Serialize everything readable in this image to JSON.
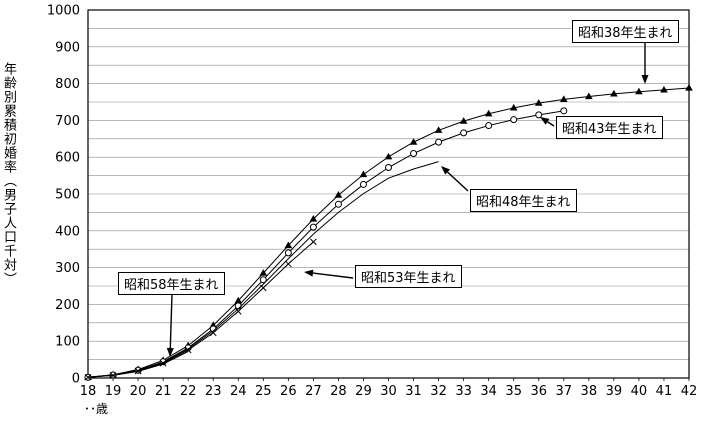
{
  "chart_data": {
    "type": "line",
    "title": "",
    "ylabel": "年齢別累積初婚率（男子人口千対）",
    "xlabel": "･･歳",
    "x_range": [
      18,
      42
    ],
    "ylim": [
      0,
      1000
    ],
    "ytick_step": 100,
    "grid_step": 50,
    "grid": true,
    "legend_position": "none",
    "series": [
      {
        "name": "昭和38年生まれ",
        "marker": "triangle",
        "x_start": 18,
        "values": [
          2,
          9,
          23,
          48,
          88,
          143,
          210,
          285,
          360,
          432,
          497,
          553,
          601,
          641,
          673,
          698,
          718,
          734,
          747,
          757,
          765,
          772,
          778,
          783,
          788
        ]
      },
      {
        "name": "昭和43年生まれ",
        "marker": "circle-open",
        "x_start": 18,
        "values": [
          2,
          8,
          21,
          44,
          82,
          133,
          196,
          267,
          340,
          410,
          472,
          526,
          572,
          610,
          641,
          666,
          686,
          702,
          715,
          726
        ]
      },
      {
        "name": "昭和48年生まれ",
        "marker": "none",
        "x_start": 18,
        "values": [
          2,
          8,
          20,
          42,
          79,
          128,
          188,
          255,
          324,
          391,
          450,
          501,
          543,
          568,
          588
        ]
      },
      {
        "name": "昭和53年生まれ",
        "marker": "x",
        "x_start": 18,
        "values": [
          2,
          7,
          19,
          40,
          76,
          123,
          181,
          245,
          310,
          370
        ]
      },
      {
        "name": "昭和58年生まれ",
        "marker": "none",
        "x_start": 18,
        "values": [
          2,
          7,
          18,
          38,
          72
        ]
      }
    ],
    "annotations": [
      {
        "label": "昭和38年生まれ",
        "arrow": [
          645,
          42,
          645,
          84
        ]
      },
      {
        "label": "昭和43年生まれ",
        "arrow": [
          554,
          126,
          540,
          117
        ]
      },
      {
        "label": "昭和48年生まれ",
        "arrow": [
          468,
          191,
          441,
          166
        ]
      },
      {
        "label": "昭和53年生まれ",
        "arrow": [
          353,
          278,
          304,
          272
        ]
      },
      {
        "label": "昭和58年生まれ",
        "arrow": [
          172,
          294,
          170,
          357
        ]
      }
    ]
  }
}
